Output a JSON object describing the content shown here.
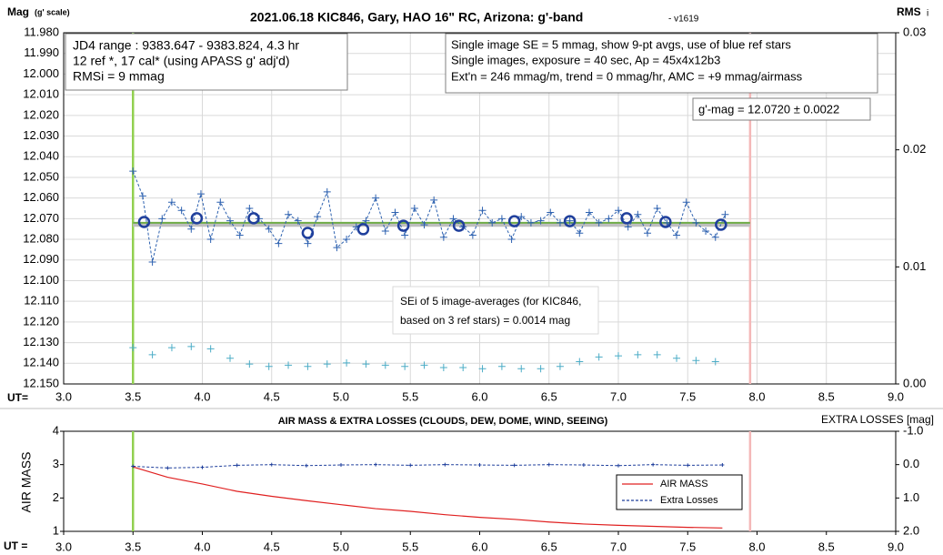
{
  "chart_data": [
    {
      "type": "line",
      "title": "2021.06.18 KIC846, Gary, HAO 16\" RC, Arizona: g'-band",
      "subtitle": " - v1619",
      "ylabel": "Mag",
      "ylabel_note": "(g' scale)",
      "y2label": "RMS",
      "y2label_note": "i",
      "xlabel": "UT=",
      "xlim": [
        3.0,
        9.0
      ],
      "xticks": [
        {
          "value": 3.0,
          "label": "3.0"
        },
        {
          "value": 3.5,
          "label": "3.5"
        },
        {
          "value": 4.0,
          "label": "4.0"
        },
        {
          "value": 4.5,
          "label": "4.5"
        },
        {
          "value": 5.0,
          "label": "5.0"
        },
        {
          "value": 5.5,
          "label": "5.5"
        },
        {
          "value": 6.0,
          "label": "6.0"
        },
        {
          "value": 6.5,
          "label": "6.5"
        },
        {
          "value": 7.0,
          "label": "7.0"
        },
        {
          "value": 7.5,
          "label": "7.5"
        },
        {
          "value": 8.0,
          "label": "8.0"
        },
        {
          "value": 8.5,
          "label": "8.5"
        },
        {
          "value": 9.0,
          "label": "9.0"
        }
      ],
      "ylim": [
        11.98,
        12.15
      ],
      "y_inverted": true,
      "yticks": [
        {
          "value": 11.98,
          "label": "11.980"
        },
        {
          "value": 11.99,
          "label": "11.990"
        },
        {
          "value": 12.0,
          "label": "12.000"
        },
        {
          "value": 12.01,
          "label": "12.010"
        },
        {
          "value": 12.02,
          "label": "12.020"
        },
        {
          "value": 12.03,
          "label": "12.030"
        },
        {
          "value": 12.04,
          "label": "12.040"
        },
        {
          "value": 12.05,
          "label": "12.050"
        },
        {
          "value": 12.06,
          "label": "12.060"
        },
        {
          "value": 12.07,
          "label": "12.070"
        },
        {
          "value": 12.08,
          "label": "12.080"
        },
        {
          "value": 12.09,
          "label": "12.090"
        },
        {
          "value": 12.1,
          "label": "12.100"
        },
        {
          "value": 12.11,
          "label": "12.110"
        },
        {
          "value": 12.12,
          "label": "12.120"
        },
        {
          "value": 12.13,
          "label": "12.130"
        },
        {
          "value": 12.14,
          "label": "12.140"
        },
        {
          "value": 12.15,
          "label": "12.150"
        }
      ],
      "y2lim": [
        0.0,
        0.03
      ],
      "y2ticks": [
        {
          "value": 0.0,
          "label": "0.00"
        },
        {
          "value": 0.01,
          "label": "0.01"
        },
        {
          "value": 0.02,
          "label": "0.02"
        },
        {
          "value": 0.03,
          "label": "0.03"
        }
      ],
      "grid": true,
      "vlines": [
        {
          "x": 3.5,
          "color": "#92d050"
        },
        {
          "x": 7.95,
          "color": "#f4b8b8"
        }
      ],
      "series": [
        {
          "color": "#bfbfbf",
          "style": "line",
          "width": 5,
          "x": [
            3.5,
            7.95
          ],
          "values": [
            12.0728,
            12.0728
          ]
        },
        {
          "color": "#70ad47",
          "style": "line",
          "width": 2,
          "x": [
            3.5,
            7.95
          ],
          "values": [
            12.072,
            12.072
          ]
        },
        {
          "color": "#2e62b0",
          "style": "dashed-plus",
          "x": [
            3.5,
            3.57,
            3.64,
            3.71,
            3.78,
            3.85,
            3.92,
            3.99,
            4.06,
            4.13,
            4.2,
            4.27,
            4.34,
            4.41,
            4.48,
            4.55,
            4.62,
            4.69,
            4.76,
            4.83,
            4.9,
            4.97,
            5.04,
            5.11,
            5.18,
            5.25,
            5.32,
            5.39,
            5.46,
            5.53,
            5.6,
            5.67,
            5.74,
            5.81,
            5.88,
            5.95,
            6.02,
            6.09,
            6.16,
            6.23,
            6.3,
            6.37,
            6.44,
            6.51,
            6.58,
            6.65,
            6.72,
            6.79,
            6.86,
            6.93,
            7.0,
            7.07,
            7.14,
            7.21,
            7.28,
            7.35,
            7.42,
            7.49,
            7.56,
            7.63,
            7.7,
            7.77
          ],
          "values": [
            12.047,
            12.059,
            12.091,
            12.07,
            12.062,
            12.066,
            12.075,
            12.058,
            12.08,
            12.062,
            12.071,
            12.078,
            12.065,
            12.07,
            12.075,
            12.082,
            12.068,
            12.071,
            12.082,
            12.069,
            12.057,
            12.084,
            12.08,
            12.074,
            12.071,
            12.06,
            12.076,
            12.067,
            12.078,
            12.065,
            12.073,
            12.061,
            12.079,
            12.07,
            12.074,
            12.078,
            12.066,
            12.072,
            12.07,
            12.08,
            12.069,
            12.072,
            12.071,
            12.067,
            12.072,
            12.071,
            12.077,
            12.067,
            12.072,
            12.07,
            12.066,
            12.074,
            12.068,
            12.077,
            12.065,
            12.072,
            12.078,
            12.062,
            12.072,
            12.076,
            12.079,
            12.068
          ]
        },
        {
          "color": "#1f3f9c",
          "style": "circle",
          "x": [
            3.58,
            3.96,
            4.37,
            4.76,
            5.16,
            5.45,
            5.85,
            6.25,
            6.65,
            7.06,
            7.34,
            7.74
          ],
          "values": [
            12.0716,
            12.0698,
            12.0698,
            12.0769,
            12.0751,
            12.0734,
            12.0734,
            12.0712,
            12.0712,
            12.0698,
            12.0716,
            12.0729
          ]
        },
        {
          "color": "#4bacc6",
          "style": "plus",
          "axis": "y2",
          "x": [
            3.5,
            3.64,
            3.78,
            3.92,
            4.06,
            4.2,
            4.34,
            4.48,
            4.62,
            4.76,
            4.9,
            5.04,
            5.18,
            5.32,
            5.46,
            5.6,
            5.74,
            5.88,
            6.02,
            6.16,
            6.3,
            6.44,
            6.58,
            6.72,
            6.86,
            7.0,
            7.14,
            7.28,
            7.42,
            7.56,
            7.7
          ],
          "values": [
            0.0031,
            0.0025,
            0.0031,
            0.0032,
            0.003,
            0.0022,
            0.0017,
            0.0015,
            0.0016,
            0.0015,
            0.0017,
            0.0018,
            0.0017,
            0.0016,
            0.0015,
            0.0016,
            0.0014,
            0.0014,
            0.0013,
            0.0015,
            0.0013,
            0.0013,
            0.0015,
            0.0019,
            0.0023,
            0.0024,
            0.0025,
            0.0025,
            0.0022,
            0.002,
            0.0019
          ]
        }
      ],
      "annotations": {
        "info_left": [
          "JD4 range : 9383.647 - 9383.824,  4.3  hr",
          "12 ref *, 17 cal* (using APASS g' adj'd)",
          "RMSi = 9 mmag"
        ],
        "info_right": [
          "Single image SE = 5 mmag, show  9-pt avgs, use of blue ref stars",
          "Single images, exposure = 40 sec, Ap = 45x4x12b3",
          "Ext'n = 246 mmag/m, trend =  0 mmag/hr, AMC = +9 mmag/airmass"
        ],
        "result": "g'-mag = 12.0720 ± 0.0022",
        "sei": [
          "SEi of 5 image-averages (for KIC846,",
          "based on 3 ref stars) = 0.0014 mag"
        ]
      }
    },
    {
      "type": "line",
      "title": "AIR MASS & EXTRA LOSSES (CLOUDS, DEW, DOME, WIND, SEEING)",
      "ylabel": "AIR MASS",
      "y2label": "EXTRA LOSSES [mag]",
      "xlabel": "UT =",
      "xlim": [
        3.0,
        9.0
      ],
      "xticks": [
        {
          "value": 3.0,
          "label": "3.0"
        },
        {
          "value": 3.5,
          "label": "3.5"
        },
        {
          "value": 4.0,
          "label": "4.0"
        },
        {
          "value": 4.5,
          "label": "4.5"
        },
        {
          "value": 5.0,
          "label": "5.0"
        },
        {
          "value": 5.5,
          "label": "5.5"
        },
        {
          "value": 6.0,
          "label": "6.0"
        },
        {
          "value": 6.5,
          "label": "6.5"
        },
        {
          "value": 7.0,
          "label": "7.0"
        },
        {
          "value": 7.5,
          "label": "7.5"
        },
        {
          "value": 8.0,
          "label": "8.0"
        },
        {
          "value": 8.5,
          "label": "8.5"
        },
        {
          "value": 9.0,
          "label": "9.0"
        }
      ],
      "ylim": [
        1,
        4
      ],
      "yticks": [
        1,
        2,
        3,
        4
      ],
      "y2lim": [
        -1.0,
        2.0
      ],
      "y2_inverted": true,
      "y2ticks": [
        {
          "value": -1.0,
          "label": "-1.0"
        },
        {
          "value": 0.0,
          "label": "0.0"
        },
        {
          "value": 1.0,
          "label": "1.0"
        },
        {
          "value": 2.0,
          "label": "2.0"
        }
      ],
      "grid": false,
      "vlines": [
        {
          "x": 3.5,
          "color": "#92d050"
        },
        {
          "x": 7.95,
          "color": "#f4b8b8"
        }
      ],
      "series": [
        {
          "name": "AIR MASS",
          "color": "#e02020",
          "style": "line",
          "width": 1.2,
          "x": [
            3.5,
            3.75,
            4.0,
            4.25,
            4.5,
            4.75,
            5.0,
            5.25,
            5.5,
            5.75,
            6.0,
            6.25,
            6.5,
            6.75,
            7.0,
            7.25,
            7.5,
            7.75
          ],
          "values": [
            2.93,
            2.62,
            2.42,
            2.2,
            2.05,
            1.92,
            1.8,
            1.68,
            1.6,
            1.5,
            1.42,
            1.36,
            1.28,
            1.22,
            1.18,
            1.15,
            1.12,
            1.1
          ]
        },
        {
          "name": "Extra Losses",
          "color": "#1f3f9c",
          "style": "dotted-line",
          "axis": "y2",
          "x": [
            3.5,
            3.75,
            4.0,
            4.25,
            4.5,
            4.75,
            5.0,
            5.25,
            5.5,
            5.75,
            6.0,
            6.25,
            6.5,
            6.75,
            7.0,
            7.25,
            7.5,
            7.75
          ],
          "values": [
            0.05,
            0.1,
            0.08,
            0.02,
            0.0,
            0.03,
            0.01,
            0.0,
            0.02,
            0.0,
            0.01,
            0.02,
            0.0,
            0.01,
            0.03,
            0.0,
            0.02,
            0.01
          ]
        }
      ]
    }
  ]
}
